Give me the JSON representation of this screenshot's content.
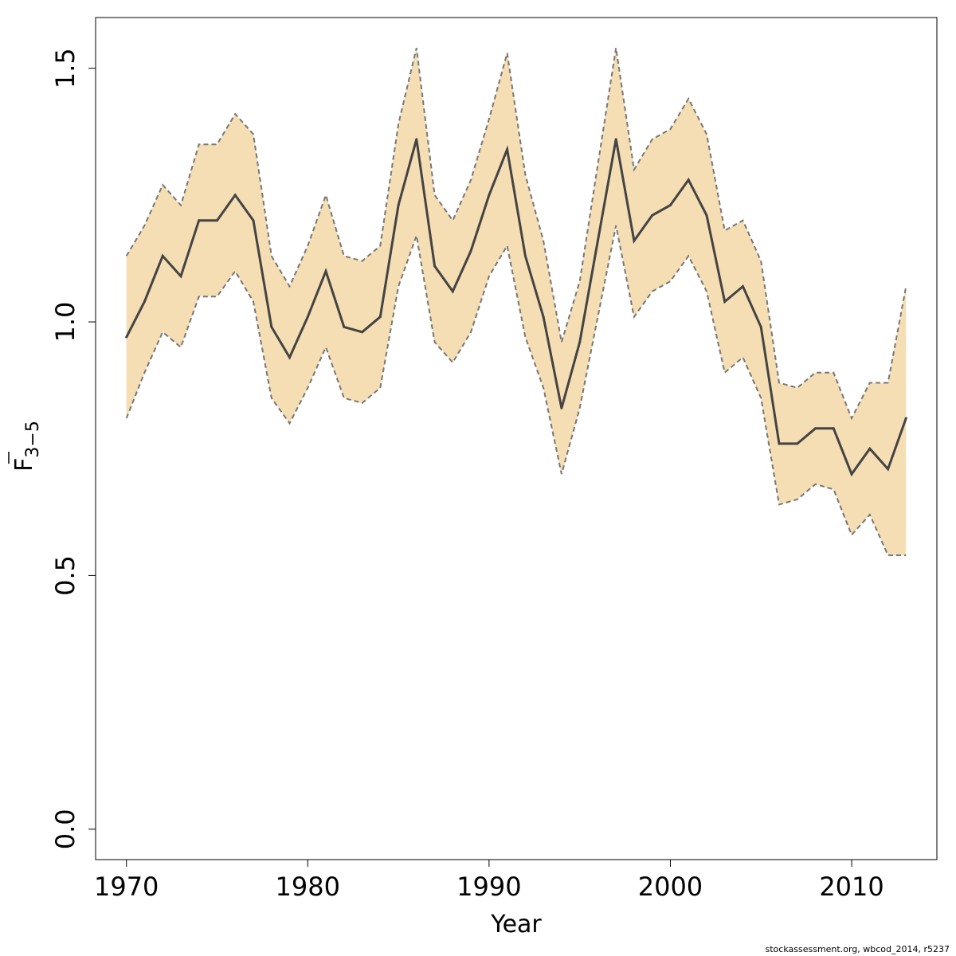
{
  "chart_data": {
    "type": "line",
    "x": [
      1970,
      1971,
      1972,
      1973,
      1974,
      1975,
      1976,
      1977,
      1978,
      1979,
      1980,
      1981,
      1982,
      1983,
      1984,
      1985,
      1986,
      1987,
      1988,
      1989,
      1990,
      1991,
      1992,
      1993,
      1994,
      1995,
      1996,
      1997,
      1998,
      1999,
      2000,
      2001,
      2002,
      2003,
      2004,
      2005,
      2006,
      2007,
      2008,
      2009,
      2010,
      2011,
      2012,
      2013
    ],
    "series": [
      {
        "role": "estimate",
        "values": [
          0.97,
          1.04,
          1.13,
          1.09,
          1.2,
          1.2,
          1.25,
          1.2,
          0.99,
          0.93,
          1.01,
          1.1,
          0.99,
          0.98,
          1.01,
          1.23,
          1.36,
          1.11,
          1.06,
          1.14,
          1.25,
          1.34,
          1.13,
          1.01,
          0.83,
          0.96,
          1.16,
          1.36,
          1.16,
          1.21,
          1.23,
          1.28,
          1.21,
          1.04,
          1.07,
          0.99,
          0.76,
          0.76,
          0.79,
          0.79,
          0.7,
          0.75,
          0.71,
          0.81
        ],
        "color": "#444444"
      },
      {
        "role": "upper-bound",
        "values": [
          1.13,
          1.19,
          1.27,
          1.23,
          1.35,
          1.35,
          1.41,
          1.37,
          1.13,
          1.07,
          1.15,
          1.25,
          1.13,
          1.12,
          1.15,
          1.39,
          1.54,
          1.25,
          1.2,
          1.28,
          1.4,
          1.53,
          1.29,
          1.16,
          0.96,
          1.08,
          1.31,
          1.54,
          1.3,
          1.36,
          1.38,
          1.44,
          1.37,
          1.18,
          1.2,
          1.12,
          0.88,
          0.87,
          0.9,
          0.9,
          0.81,
          0.88,
          0.88,
          1.07
        ],
        "color": "#777777"
      },
      {
        "role": "lower-bound",
        "values": [
          0.81,
          0.9,
          0.98,
          0.95,
          1.05,
          1.05,
          1.1,
          1.04,
          0.85,
          0.8,
          0.87,
          0.95,
          0.85,
          0.84,
          0.87,
          1.07,
          1.17,
          0.96,
          0.92,
          0.98,
          1.09,
          1.15,
          0.97,
          0.87,
          0.7,
          0.83,
          1.01,
          1.19,
          1.01,
          1.06,
          1.08,
          1.13,
          1.06,
          0.9,
          0.93,
          0.85,
          0.64,
          0.65,
          0.68,
          0.67,
          0.58,
          0.62,
          0.54,
          0.54
        ],
        "color": "#777777"
      }
    ],
    "band_color": "#F5DEB3",
    "xlabel": "Year",
    "ylabel": "F",
    "ylabel_sub": "3−5",
    "xlim": [
      1968.3,
      2014.7
    ],
    "ylim": [
      -0.06,
      1.6
    ],
    "xticks": [
      1970,
      1980,
      1990,
      2000,
      2010
    ],
    "yticks": [
      0.0,
      0.5,
      1.0,
      1.5
    ],
    "ytick_labels": [
      "0.0",
      "0.5",
      "1.0",
      "1.5"
    ],
    "grid": false,
    "legend": "none"
  },
  "footer": {
    "source": "stockassessment.org, wbcod_2014, r5237"
  }
}
